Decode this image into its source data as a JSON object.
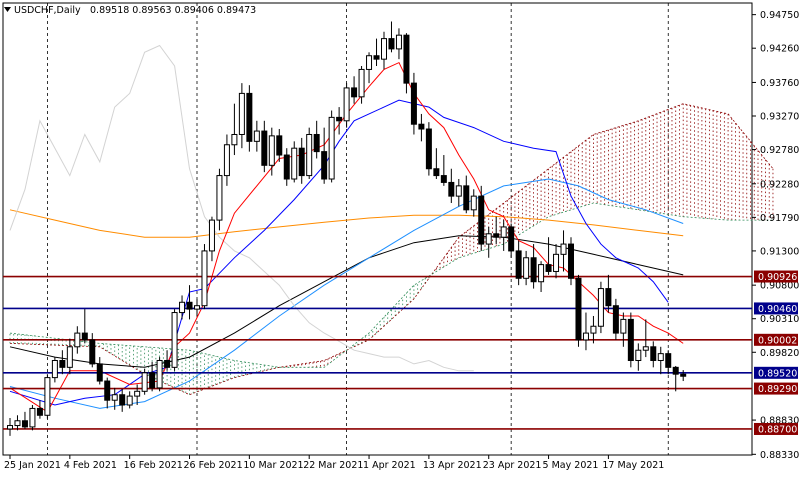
{
  "header": {
    "symbol": "USDCHF,Daily",
    "ohlc": "0.89518 0.89563 0.89406 0.89473"
  },
  "colors": {
    "grid": "#000000",
    "axis_text": "#000000",
    "bull_body": "#ffffff",
    "bear_body": "#000000",
    "candle_outline": "#000000",
    "tenkan": "#ff0000",
    "kijun": "#0000ff",
    "chikou": "#d3d3d3",
    "sma_fast": "#1e90ff",
    "sma_mid": "#000000",
    "sma_slow": "#ff8c00",
    "cloud_bull": "#8b0000",
    "cloud_bear": "#2e8b57",
    "level_red": "#8b0000",
    "level_blue": "#00008b",
    "label_text": "#ffffff"
  },
  "chart_data": {
    "type": "candlestick",
    "ylim": [
      0.8832,
      0.9492
    ],
    "y_ticks": [
      "0.94750",
      "0.94260",
      "0.93760",
      "0.93270",
      "0.92780",
      "0.92280",
      "0.91790",
      "0.91300",
      "0.90800",
      "0.90310",
      "0.89820",
      "0.88830",
      "0.88330"
    ],
    "x_ticks": [
      "25 Jan 2021",
      "4 Feb 2021",
      "16 Feb 2021",
      "26 Feb 2021",
      "10 Mar 2021",
      "22 Mar 2021",
      "1 Apr 2021",
      "13 Apr 2021",
      "23 Apr 2021",
      "5 May 2021",
      "17 May 2021"
    ],
    "x_tick_index": [
      0,
      8,
      16,
      24,
      32,
      40,
      48,
      56,
      64,
      72,
      80
    ],
    "vgrid_index": [
      5,
      25,
      45,
      67,
      88
    ],
    "levels": [
      {
        "label": "0.90926",
        "value": 0.90926,
        "color": "#8b0000"
      },
      {
        "label": "0.90460",
        "value": 0.9046,
        "color": "#00008b"
      },
      {
        "label": "0.90002",
        "value": 0.90002,
        "color": "#8b0000"
      },
      {
        "label": "0.89520",
        "value": 0.8952,
        "color": "#00008b"
      },
      {
        "label": "0.89290",
        "value": 0.8929,
        "color": "#8b0000"
      },
      {
        "label": "0.88700",
        "value": 0.887,
        "color": "#8b0000"
      }
    ],
    "candles": [
      [
        0.887,
        0.8886,
        0.886,
        0.8875
      ],
      [
        0.8875,
        0.889,
        0.8868,
        0.8882
      ],
      [
        0.8882,
        0.8895,
        0.887,
        0.8873
      ],
      [
        0.8873,
        0.8905,
        0.8868,
        0.89
      ],
      [
        0.89,
        0.8912,
        0.8885,
        0.889
      ],
      [
        0.889,
        0.895,
        0.8885,
        0.8945
      ],
      [
        0.8945,
        0.8975,
        0.8938,
        0.897
      ],
      [
        0.897,
        0.8985,
        0.895,
        0.896
      ],
      [
        0.896,
        0.9002,
        0.895,
        0.899
      ],
      [
        0.899,
        0.902,
        0.898,
        0.901
      ],
      [
        0.901,
        0.9045,
        0.8995,
        0.9
      ],
      [
        0.9,
        0.901,
        0.896,
        0.8965
      ],
      [
        0.8965,
        0.8975,
        0.8935,
        0.894
      ],
      [
        0.894,
        0.8945,
        0.89,
        0.8912
      ],
      [
        0.8912,
        0.893,
        0.8898,
        0.892
      ],
      [
        0.892,
        0.8928,
        0.8895,
        0.8905
      ],
      [
        0.8905,
        0.8925,
        0.89,
        0.8918
      ],
      [
        0.8918,
        0.8935,
        0.8905,
        0.8925
      ],
      [
        0.8925,
        0.8958,
        0.892,
        0.8952
      ],
      [
        0.8952,
        0.8968,
        0.8925,
        0.893
      ],
      [
        0.893,
        0.8975,
        0.8925,
        0.897
      ],
      [
        0.897,
        0.8985,
        0.8955,
        0.896
      ],
      [
        0.896,
        0.9045,
        0.8955,
        0.904
      ],
      [
        0.904,
        0.9065,
        0.903,
        0.9055
      ],
      [
        0.9055,
        0.908,
        0.903,
        0.9045
      ],
      [
        0.9045,
        0.906,
        0.9035,
        0.905
      ],
      [
        0.905,
        0.914,
        0.9045,
        0.913
      ],
      [
        0.913,
        0.918,
        0.9115,
        0.9175
      ],
      [
        0.9175,
        0.925,
        0.916,
        0.924
      ],
      [
        0.924,
        0.93,
        0.9225,
        0.9285
      ],
      [
        0.9285,
        0.9345,
        0.927,
        0.93
      ],
      [
        0.93,
        0.9375,
        0.928,
        0.936
      ],
      [
        0.936,
        0.9372,
        0.9275,
        0.929
      ],
      [
        0.929,
        0.932,
        0.9275,
        0.9305
      ],
      [
        0.9305,
        0.932,
        0.9245,
        0.9255
      ],
      [
        0.9255,
        0.931,
        0.924,
        0.9298
      ],
      [
        0.9298,
        0.9308,
        0.926,
        0.927
      ],
      [
        0.927,
        0.928,
        0.9225,
        0.9235
      ],
      [
        0.9235,
        0.929,
        0.923,
        0.928
      ],
      [
        0.928,
        0.9295,
        0.9228,
        0.924
      ],
      [
        0.924,
        0.931,
        0.9235,
        0.93
      ],
      [
        0.93,
        0.932,
        0.9265,
        0.9275
      ],
      [
        0.9275,
        0.931,
        0.9228,
        0.9235
      ],
      [
        0.9235,
        0.9335,
        0.923,
        0.9325
      ],
      [
        0.9325,
        0.934,
        0.93,
        0.932
      ],
      [
        0.932,
        0.9375,
        0.931,
        0.9368
      ],
      [
        0.9368,
        0.9385,
        0.9345,
        0.9355
      ],
      [
        0.9355,
        0.94,
        0.9345,
        0.9395
      ],
      [
        0.9395,
        0.942,
        0.9375,
        0.9415
      ],
      [
        0.9415,
        0.944,
        0.94,
        0.941
      ],
      [
        0.941,
        0.945,
        0.9395,
        0.944
      ],
      [
        0.944,
        0.9465,
        0.942,
        0.9425
      ],
      [
        0.9425,
        0.9455,
        0.941,
        0.9445
      ],
      [
        0.9445,
        0.9448,
        0.936,
        0.9375
      ],
      [
        0.9375,
        0.939,
        0.93,
        0.9315
      ],
      [
        0.9315,
        0.933,
        0.929,
        0.9308
      ],
      [
        0.9308,
        0.9318,
        0.924,
        0.925
      ],
      [
        0.925,
        0.928,
        0.9235,
        0.924
      ],
      [
        0.924,
        0.927,
        0.9225,
        0.923
      ],
      [
        0.923,
        0.925,
        0.92,
        0.921
      ],
      [
        0.921,
        0.9235,
        0.9195,
        0.9225
      ],
      [
        0.9225,
        0.924,
        0.9185,
        0.919
      ],
      [
        0.919,
        0.922,
        0.918,
        0.921
      ],
      [
        0.921,
        0.9225,
        0.913,
        0.914
      ],
      [
        0.914,
        0.9165,
        0.912,
        0.9155
      ],
      [
        0.9155,
        0.918,
        0.914,
        0.915
      ],
      [
        0.915,
        0.9175,
        0.913,
        0.9165
      ],
      [
        0.9165,
        0.917,
        0.912,
        0.913
      ],
      [
        0.913,
        0.9145,
        0.908,
        0.909
      ],
      [
        0.909,
        0.913,
        0.908,
        0.912
      ],
      [
        0.912,
        0.914,
        0.9075,
        0.9085
      ],
      [
        0.9085,
        0.9115,
        0.907,
        0.911
      ],
      [
        0.911,
        0.915,
        0.9095,
        0.91
      ],
      [
        0.91,
        0.914,
        0.909,
        0.9125
      ],
      [
        0.9125,
        0.916,
        0.91,
        0.914
      ],
      [
        0.914,
        0.915,
        0.908,
        0.909
      ],
      [
        0.909,
        0.9095,
        0.899,
        0.9
      ],
      [
        0.9,
        0.904,
        0.8985,
        0.901
      ],
      [
        0.901,
        0.9035,
        0.8995,
        0.902
      ],
      [
        0.902,
        0.9085,
        0.901,
        0.9075
      ],
      [
        0.9075,
        0.9095,
        0.904,
        0.905
      ],
      [
        0.905,
        0.906,
        0.9,
        0.901
      ],
      [
        0.901,
        0.904,
        0.899,
        0.903
      ],
      [
        0.903,
        0.904,
        0.896,
        0.897
      ],
      [
        0.897,
        0.8995,
        0.8955,
        0.8985
      ],
      [
        0.8985,
        0.903,
        0.8975,
        0.899
      ],
      [
        0.899,
        0.8998,
        0.896,
        0.897
      ],
      [
        0.897,
        0.899,
        0.895,
        0.898
      ],
      [
        0.898,
        0.8985,
        0.895,
        0.896
      ],
      [
        0.896,
        0.8962,
        0.8925,
        0.895
      ],
      [
        0.895,
        0.8956,
        0.894,
        0.8947
      ]
    ],
    "tenkan": [
      [
        0,
        0.893
      ],
      [
        5,
        0.8895
      ],
      [
        8,
        0.8955
      ],
      [
        12,
        0.8955
      ],
      [
        16,
        0.8935
      ],
      [
        20,
        0.894
      ],
      [
        22,
        0.899
      ],
      [
        24,
        0.901
      ],
      [
        26,
        0.9055
      ],
      [
        28,
        0.913
      ],
      [
        30,
        0.9185
      ],
      [
        33,
        0.9225
      ],
      [
        36,
        0.9265
      ],
      [
        39,
        0.927
      ],
      [
        42,
        0.9285
      ],
      [
        45,
        0.933
      ],
      [
        48,
        0.937
      ],
      [
        50,
        0.9395
      ],
      [
        52,
        0.9405
      ],
      [
        54,
        0.936
      ],
      [
        56,
        0.933
      ],
      [
        58,
        0.931
      ],
      [
        60,
        0.927
      ],
      [
        62,
        0.9235
      ],
      [
        64,
        0.919
      ],
      [
        66,
        0.918
      ],
      [
        68,
        0.9145
      ],
      [
        70,
        0.9135
      ],
      [
        72,
        0.911
      ],
      [
        74,
        0.9105
      ],
      [
        76,
        0.9085
      ],
      [
        78,
        0.9065
      ],
      [
        80,
        0.904
      ],
      [
        82,
        0.9035
      ],
      [
        84,
        0.9035
      ],
      [
        86,
        0.902
      ],
      [
        88,
        0.901
      ],
      [
        90,
        0.8995
      ]
    ],
    "kijun": [
      [
        0,
        0.8925
      ],
      [
        6,
        0.8905
      ],
      [
        10,
        0.8915
      ],
      [
        14,
        0.892
      ],
      [
        18,
        0.895
      ],
      [
        21,
        0.896
      ],
      [
        24,
        0.907
      ],
      [
        26,
        0.9075
      ],
      [
        30,
        0.912
      ],
      [
        34,
        0.916
      ],
      [
        38,
        0.9205
      ],
      [
        42,
        0.9255
      ],
      [
        44,
        0.929
      ],
      [
        46,
        0.932
      ],
      [
        48,
        0.933
      ],
      [
        50,
        0.934
      ],
      [
        52,
        0.935
      ],
      [
        56,
        0.934
      ],
      [
        58,
        0.9325
      ],
      [
        62,
        0.931
      ],
      [
        66,
        0.929
      ],
      [
        70,
        0.928
      ],
      [
        73,
        0.9275
      ],
      [
        75,
        0.921
      ],
      [
        77,
        0.917
      ],
      [
        79,
        0.914
      ],
      [
        81,
        0.912
      ],
      [
        84,
        0.9105
      ],
      [
        86,
        0.9085
      ],
      [
        88,
        0.9055
      ]
    ],
    "chikou": [
      [
        0,
        0.916
      ],
      [
        2,
        0.922
      ],
      [
        4,
        0.932
      ],
      [
        6,
        0.928
      ],
      [
        8,
        0.924
      ],
      [
        10,
        0.93
      ],
      [
        12,
        0.926
      ],
      [
        14,
        0.934
      ],
      [
        16,
        0.936
      ],
      [
        18,
        0.942
      ],
      [
        20,
        0.943
      ],
      [
        22,
        0.94
      ],
      [
        24,
        0.925
      ],
      [
        26,
        0.918
      ],
      [
        28,
        0.915
      ],
      [
        30,
        0.913
      ],
      [
        32,
        0.912
      ],
      [
        34,
        0.91
      ],
      [
        36,
        0.908
      ],
      [
        38,
        0.905
      ],
      [
        40,
        0.9025
      ],
      [
        42,
        0.901
      ],
      [
        44,
        0.8998
      ],
      [
        46,
        0.8985
      ],
      [
        48,
        0.898
      ],
      [
        50,
        0.8975
      ],
      [
        52,
        0.8975
      ],
      [
        54,
        0.8965
      ],
      [
        56,
        0.897
      ],
      [
        58,
        0.896
      ],
      [
        60,
        0.8955
      ],
      [
        62,
        0.8955
      ]
    ],
    "sma_fast": [
      [
        0,
        0.8932
      ],
      [
        6,
        0.8915
      ],
      [
        12,
        0.89
      ],
      [
        18,
        0.891
      ],
      [
        24,
        0.894
      ],
      [
        30,
        0.8985
      ],
      [
        36,
        0.9035
      ],
      [
        42,
        0.908
      ],
      [
        48,
        0.912
      ],
      [
        54,
        0.916
      ],
      [
        60,
        0.9195
      ],
      [
        66,
        0.9225
      ],
      [
        72,
        0.9235
      ],
      [
        76,
        0.9225
      ],
      [
        80,
        0.9205
      ],
      [
        85,
        0.919
      ],
      [
        90,
        0.917
      ]
    ],
    "sma_mid": [
      [
        0,
        0.899
      ],
      [
        6,
        0.8975
      ],
      [
        12,
        0.8965
      ],
      [
        18,
        0.896
      ],
      [
        24,
        0.8975
      ],
      [
        30,
        0.901
      ],
      [
        36,
        0.905
      ],
      [
        42,
        0.9085
      ],
      [
        48,
        0.912
      ],
      [
        54,
        0.9142
      ],
      [
        60,
        0.9152
      ],
      [
        66,
        0.915
      ],
      [
        72,
        0.914
      ],
      [
        78,
        0.9125
      ],
      [
        84,
        0.911
      ],
      [
        90,
        0.9095
      ]
    ],
    "sma_slow": [
      [
        0,
        0.919
      ],
      [
        6,
        0.9175
      ],
      [
        12,
        0.916
      ],
      [
        18,
        0.915
      ],
      [
        24,
        0.915
      ],
      [
        30,
        0.9158
      ],
      [
        36,
        0.9165
      ],
      [
        42,
        0.9172
      ],
      [
        48,
        0.9178
      ],
      [
        54,
        0.9182
      ],
      [
        60,
        0.9182
      ],
      [
        66,
        0.918
      ],
      [
        72,
        0.9175
      ],
      [
        78,
        0.9168
      ],
      [
        84,
        0.916
      ],
      [
        90,
        0.9152
      ]
    ],
    "span_a": [
      [
        0,
        0.8995
      ],
      [
        12,
        0.899
      ],
      [
        18,
        0.895
      ],
      [
        24,
        0.892
      ],
      [
        30,
        0.8945
      ],
      [
        36,
        0.896
      ],
      [
        42,
        0.897
      ],
      [
        48,
        0.9
      ],
      [
        54,
        0.906
      ],
      [
        60,
        0.915
      ],
      [
        66,
        0.92
      ],
      [
        72,
        0.925
      ],
      [
        78,
        0.93
      ],
      [
        84,
        0.932
      ],
      [
        90,
        0.9345
      ],
      [
        96,
        0.933
      ],
      [
        102,
        0.925
      ]
    ],
    "span_b": [
      [
        0,
        0.901
      ],
      [
        12,
        0.8995
      ],
      [
        18,
        0.899
      ],
      [
        24,
        0.8985
      ],
      [
        30,
        0.897
      ],
      [
        36,
        0.896
      ],
      [
        42,
        0.896
      ],
      [
        48,
        0.901
      ],
      [
        54,
        0.908
      ],
      [
        60,
        0.912
      ],
      [
        66,
        0.914
      ],
      [
        72,
        0.918
      ],
      [
        78,
        0.92
      ],
      [
        84,
        0.919
      ],
      [
        90,
        0.918
      ],
      [
        96,
        0.9175
      ],
      [
        102,
        0.9175
      ]
    ]
  }
}
